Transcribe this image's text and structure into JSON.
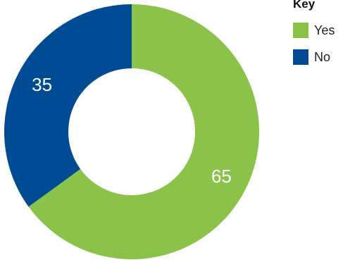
{
  "legend": {
    "title": "Key"
  },
  "chart_data": {
    "type": "pie",
    "variant": "donut",
    "title": "",
    "categories": [
      "Yes",
      "No"
    ],
    "values": [
      65,
      35
    ],
    "colors": [
      "#8BC34A",
      "#004B93"
    ],
    "legend_placement": "top-right",
    "start_angle": "12 o'clock",
    "direction": "clockwise"
  }
}
